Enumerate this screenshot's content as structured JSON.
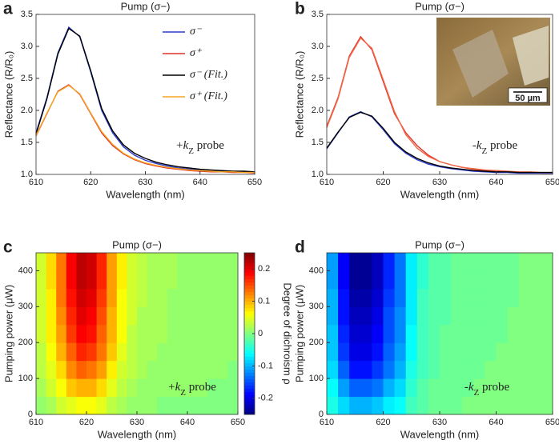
{
  "chart_data": [
    {
      "type": "line",
      "panel": "a",
      "title": "Pump (σ−)",
      "x_label": "Wavelength (nm)",
      "y_label": "Reflectance (R/R₀)",
      "annotation": [
        "+",
        "k",
        "Z",
        " probe"
      ],
      "legend": "upper right",
      "xlim": [
        610,
        650
      ],
      "xticks": [
        610,
        620,
        630,
        640,
        650
      ],
      "ylim": [
        1,
        3.5
      ],
      "yticks": [
        {
          "value": 1,
          "label": "1.0"
        },
        1.5,
        {
          "value": 2,
          "label": "2.0"
        },
        2.5,
        {
          "value": 3,
          "label": "3.0"
        },
        3.5
      ],
      "x": [
        610,
        612,
        614,
        616,
        618,
        620,
        622,
        624,
        626,
        628,
        630,
        632,
        634,
        636,
        638,
        640,
        642,
        644,
        646,
        648,
        650
      ],
      "series": [
        {
          "name": "σ⁻",
          "color": "#2b3ccf",
          "values": [
            1.65,
            2.2,
            2.9,
            3.3,
            3.15,
            2.6,
            2.0,
            1.65,
            1.43,
            1.3,
            1.22,
            1.17,
            1.13,
            1.1,
            1.08,
            1.07,
            1.06,
            1.05,
            1.04,
            1.04,
            1.03
          ]
        },
        {
          "name": "σ⁺",
          "color": "#e0322a",
          "values": [
            1.6,
            1.95,
            2.3,
            2.4,
            2.25,
            1.95,
            1.65,
            1.45,
            1.32,
            1.23,
            1.17,
            1.13,
            1.1,
            1.08,
            1.06,
            1.05,
            1.04,
            1.04,
            1.03,
            1.03,
            1.02
          ]
        },
        {
          "name": "σ⁻ (Fit.)",
          "color": "#000000",
          "values": [
            1.63,
            2.18,
            2.88,
            3.28,
            3.16,
            2.62,
            2.03,
            1.68,
            1.46,
            1.33,
            1.25,
            1.19,
            1.15,
            1.12,
            1.1,
            1.08,
            1.07,
            1.06,
            1.05,
            1.05,
            1.04
          ]
        },
        {
          "name": "σ⁺ (Fit.)",
          "color": "#f5a623",
          "values": [
            1.61,
            1.96,
            2.29,
            2.39,
            2.26,
            1.96,
            1.67,
            1.47,
            1.33,
            1.24,
            1.18,
            1.14,
            1.11,
            1.09,
            1.07,
            1.06,
            1.05,
            1.04,
            1.04,
            1.03,
            1.03
          ]
        }
      ]
    },
    {
      "type": "line",
      "panel": "b",
      "title": "Pump (σ−)",
      "x_label": "Wavelength (nm)",
      "y_label": "Reflectance (R/R₀)",
      "annotation": [
        "-",
        "k",
        "Z",
        " probe"
      ],
      "inset_scale_label": "50 µm",
      "xlim": [
        610,
        650
      ],
      "xticks": [
        610,
        620,
        630,
        640,
        650
      ],
      "ylim": [
        1,
        3.5
      ],
      "yticks": [
        {
          "value": 1,
          "label": "1.0"
        },
        1.5,
        {
          "value": 2,
          "label": "2.0"
        },
        2.5,
        {
          "value": 3,
          "label": "3.0"
        },
        3.5
      ],
      "x": [
        610,
        612,
        614,
        616,
        618,
        620,
        622,
        624,
        626,
        628,
        630,
        632,
        634,
        636,
        638,
        640,
        642,
        644,
        646,
        648,
        650
      ],
      "series": [
        {
          "color": "#e0322a",
          "values": [
            1.75,
            2.2,
            2.85,
            3.15,
            2.95,
            2.45,
            1.95,
            1.65,
            1.45,
            1.3,
            1.2,
            1.15,
            1.11,
            1.08,
            1.06,
            1.05,
            1.04,
            1.03,
            1.03,
            1.02,
            1.02
          ]
        },
        {
          "color": "#2b3ccf",
          "values": [
            1.4,
            1.65,
            1.9,
            1.98,
            1.9,
            1.7,
            1.48,
            1.33,
            1.23,
            1.16,
            1.12,
            1.09,
            1.07,
            1.05,
            1.04,
            1.03,
            1.03,
            1.02,
            1.02,
            1.02,
            1.02
          ]
        },
        {
          "color": "#f06a4a",
          "values": [
            1.73,
            2.18,
            2.83,
            3.13,
            2.97,
            2.48,
            1.98,
            1.62,
            1.41,
            1.28,
            1.2,
            1.15,
            1.11,
            1.09,
            1.07,
            1.06,
            1.05,
            1.04,
            1.04,
            1.03,
            1.03
          ]
        },
        {
          "color": "#000000",
          "values": [
            1.41,
            1.66,
            1.89,
            1.97,
            1.91,
            1.72,
            1.5,
            1.35,
            1.25,
            1.18,
            1.13,
            1.1,
            1.08,
            1.06,
            1.05,
            1.04,
            1.04,
            1.03,
            1.03,
            1.03,
            1.03
          ]
        }
      ]
    },
    {
      "type": "heatmap",
      "panel": "c",
      "title": "Pump (σ−)",
      "x_label": "Wavelength (nm)",
      "y_label": "Pumping power (μW)",
      "annotation": [
        "+",
        "k",
        "Z",
        " probe"
      ],
      "colormap": "jet",
      "clim": [
        -0.25,
        0.25
      ],
      "colorbar": {
        "label": "Degree of dichroism ρ",
        "ticks": [
          -0.2,
          -0.1,
          0,
          0.1,
          0.2
        ]
      },
      "xlim": [
        610,
        650
      ],
      "xticks": [
        610,
        620,
        630,
        640,
        650
      ],
      "ylim": [
        0,
        450
      ],
      "yticks": [
        0,
        100,
        200,
        300,
        400
      ],
      "x": [
        611,
        613,
        615,
        617,
        619,
        621,
        623,
        625,
        627,
        629,
        631,
        633,
        635,
        637,
        639,
        641,
        643,
        645,
        647,
        649
      ],
      "y": [
        25,
        75,
        125,
        175,
        225,
        275,
        325,
        375,
        425
      ],
      "z": [
        [
          0.01,
          0.02,
          0.04,
          0.05,
          0.06,
          0.06,
          0.05,
          0.03,
          0.02,
          0.01,
          0.01,
          0.01,
          0,
          0,
          0,
          0,
          0,
          0,
          0,
          0
        ],
        [
          0.02,
          0.04,
          0.06,
          0.09,
          0.1,
          0.1,
          0.08,
          0.05,
          0.03,
          0.02,
          0.01,
          0.01,
          0.01,
          0.01,
          0.01,
          0.01,
          0.01,
          0,
          0,
          0
        ],
        [
          0.03,
          0.05,
          0.08,
          0.12,
          0.14,
          0.13,
          0.11,
          0.07,
          0.04,
          0.03,
          0.02,
          0.01,
          0.01,
          0.01,
          0.01,
          0.01,
          0.01,
          0.01,
          0.01,
          0
        ],
        [
          0.03,
          0.06,
          0.1,
          0.14,
          0.17,
          0.16,
          0.13,
          0.09,
          0.05,
          0.03,
          0.02,
          0.02,
          0.01,
          0.01,
          0.01,
          0.01,
          0.01,
          0.01,
          0.01,
          0.01
        ],
        [
          0.04,
          0.07,
          0.11,
          0.16,
          0.19,
          0.18,
          0.14,
          0.1,
          0.06,
          0.03,
          0.02,
          0.02,
          0.02,
          0.01,
          0.01,
          0.01,
          0.01,
          0.01,
          0.01,
          0.01
        ],
        [
          0.04,
          0.07,
          0.12,
          0.17,
          0.2,
          0.19,
          0.15,
          0.1,
          0.06,
          0.04,
          0.02,
          0.02,
          0.02,
          0.01,
          0.01,
          0.01,
          0.01,
          0.01,
          0.01,
          0.01
        ],
        [
          0.04,
          0.07,
          0.13,
          0.18,
          0.21,
          0.2,
          0.16,
          0.11,
          0.06,
          0.04,
          0.03,
          0.02,
          0.02,
          0.01,
          0.01,
          0.01,
          0.01,
          0.01,
          0.01,
          0.01
        ],
        [
          0.04,
          0.08,
          0.13,
          0.19,
          0.22,
          0.21,
          0.17,
          0.11,
          0.07,
          0.04,
          0.03,
          0.02,
          0.02,
          0.02,
          0.01,
          0.01,
          0.01,
          0.01,
          0.01,
          0.01
        ],
        [
          0.04,
          0.08,
          0.13,
          0.19,
          0.22,
          0.21,
          0.17,
          0.11,
          0.07,
          0.04,
          0.03,
          0.02,
          0.02,
          0.02,
          0.01,
          0.01,
          0.01,
          0.01,
          0.01,
          0.01
        ]
      ]
    },
    {
      "type": "heatmap",
      "panel": "d",
      "title": "Pump (σ−)",
      "x_label": "Wavelength (nm)",
      "y_label": "Pumping power (μW)",
      "annotation": [
        "-",
        "k",
        "Z",
        " probe"
      ],
      "colormap": "jet",
      "clim": [
        -0.25,
        0.25
      ],
      "xlim": [
        610,
        650
      ],
      "xticks": [
        610,
        620,
        630,
        640,
        650
      ],
      "ylim": [
        0,
        450
      ],
      "yticks": [
        0,
        100,
        200,
        300,
        400
      ],
      "x": [
        611,
        613,
        615,
        617,
        619,
        621,
        623,
        625,
        627,
        629,
        631,
        633,
        635,
        637,
        639,
        641,
        643,
        645,
        647,
        649
      ],
      "y": [
        25,
        75,
        125,
        175,
        225,
        275,
        325,
        375,
        425
      ],
      "z": [
        [
          -0.05,
          -0.08,
          -0.1,
          -0.1,
          -0.09,
          -0.07,
          -0.06,
          -0.03,
          -0.02,
          -0.01,
          -0.01,
          -0.01,
          0,
          0,
          0,
          0,
          0,
          0,
          0,
          0
        ],
        [
          -0.06,
          -0.11,
          -0.14,
          -0.14,
          -0.13,
          -0.1,
          -0.08,
          -0.04,
          -0.02,
          -0.01,
          -0.01,
          -0.01,
          -0.01,
          0,
          0,
          0,
          0,
          0,
          0,
          0
        ],
        [
          -0.08,
          -0.14,
          -0.18,
          -0.18,
          -0.16,
          -0.13,
          -0.1,
          -0.05,
          -0.03,
          -0.02,
          -0.01,
          -0.01,
          -0.01,
          -0.01,
          0,
          0,
          0,
          0,
          0,
          0
        ],
        [
          -0.09,
          -0.16,
          -0.2,
          -0.2,
          -0.18,
          -0.14,
          -0.11,
          -0.06,
          -0.03,
          -0.02,
          -0.01,
          -0.01,
          -0.01,
          -0.01,
          -0.01,
          0,
          0,
          0,
          0,
          0
        ],
        [
          -0.09,
          -0.17,
          -0.21,
          -0.21,
          -0.19,
          -0.15,
          -0.12,
          -0.06,
          -0.03,
          -0.02,
          -0.01,
          -0.01,
          -0.01,
          -0.01,
          -0.01,
          -0.01,
          0,
          0,
          0,
          0
        ],
        [
          -0.1,
          -0.18,
          -0.22,
          -0.22,
          -0.2,
          -0.15,
          -0.12,
          -0.07,
          -0.03,
          -0.02,
          -0.02,
          -0.01,
          -0.01,
          -0.01,
          -0.01,
          -0.01,
          0,
          0,
          0,
          0
        ],
        [
          -0.1,
          -0.18,
          -0.23,
          -0.23,
          -0.21,
          -0.16,
          -0.13,
          -0.07,
          -0.03,
          -0.02,
          -0.02,
          -0.01,
          -0.01,
          -0.01,
          -0.01,
          -0.01,
          -0.01,
          0,
          0,
          0
        ],
        [
          -0.11,
          -0.19,
          -0.24,
          -0.24,
          -0.22,
          -0.17,
          -0.13,
          -0.07,
          -0.04,
          -0.02,
          -0.02,
          -0.01,
          -0.01,
          -0.01,
          -0.01,
          -0.01,
          -0.01,
          0,
          0,
          0
        ],
        [
          -0.11,
          -0.19,
          -0.24,
          -0.24,
          -0.22,
          -0.17,
          -0.13,
          -0.07,
          -0.04,
          -0.02,
          -0.02,
          -0.01,
          -0.01,
          -0.01,
          -0.01,
          -0.01,
          -0.01,
          0,
          0,
          0
        ]
      ]
    }
  ]
}
